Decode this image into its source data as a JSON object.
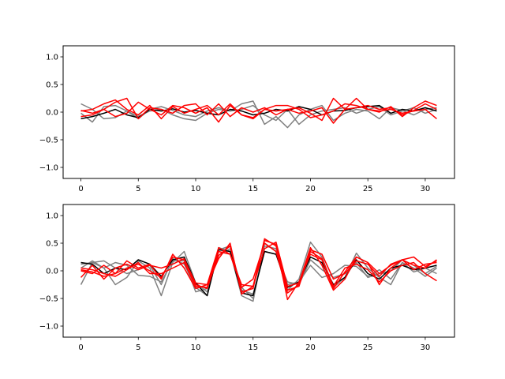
{
  "chart_data": [
    {
      "type": "line",
      "xlim": [
        -1.55,
        32.55
      ],
      "ylim": [
        -1.2,
        1.2
      ],
      "xticks": [
        0,
        5,
        10,
        15,
        20,
        25,
        30
      ],
      "yticks": [
        -1.0,
        -0.5,
        0.0,
        0.5,
        1.0
      ],
      "xtick_labels": [
        "0",
        "5",
        "10",
        "15",
        "20",
        "25",
        "30"
      ],
      "ytick_labels": [
        "−1.0",
        "−0.5",
        "0.0",
        "0.5",
        "1.0"
      ],
      "x": [
        0,
        1,
        2,
        3,
        4,
        5,
        6,
        7,
        8,
        9,
        10,
        11,
        12,
        13,
        14,
        15,
        16,
        17,
        18,
        19,
        20,
        21,
        22,
        23,
        24,
        25,
        26,
        27,
        28,
        29,
        30,
        31
      ],
      "series": [
        {
          "color": "#808080",
          "values": [
            0.15,
            0.05,
            -0.12,
            -0.1,
            0.02,
            -0.12,
            0.05,
            0.1,
            0.03,
            -0.05,
            -0.08,
            0.02,
            0.08,
            0.02,
            0.15,
            0.2,
            -0.22,
            -0.08,
            -0.28,
            -0.05,
            0.05,
            0.12,
            -0.15,
            -0.02,
            0.05,
            0.02,
            -0.12,
            0.08,
            0.03,
            -0.05,
            0.05,
            0.08
          ]
        },
        {
          "color": "#808080",
          "values": [
            -0.02,
            -0.18,
            0.1,
            0.12,
            0.02,
            -0.08,
            0.02,
            0.05,
            -0.05,
            -0.12,
            -0.15,
            -0.02,
            0.05,
            0.02,
            0.05,
            0.12,
            -0.05,
            -0.15,
            0.05,
            -0.22,
            -0.05,
            0.02,
            0.05,
            0.08,
            -0.02,
            0.05,
            0.1,
            -0.05,
            0.02,
            0.08,
            -0.02,
            0.05
          ]
        },
        {
          "color": "#000000",
          "values": [
            -0.12,
            -0.08,
            -0.02,
            0.05,
            -0.05,
            -0.1,
            0.05,
            0.02,
            0.06,
            0.0,
            0.03,
            -0.02,
            -0.05,
            0.05,
            0.02,
            -0.05,
            -0.02,
            0.05,
            0.02,
            0.1,
            0.05,
            -0.05,
            0.02,
            0.03,
            0.08,
            0.1,
            0.12,
            -0.02,
            0.05,
            0.02,
            0.08,
            0.02
          ]
        },
        {
          "color": "#ff0000",
          "values": [
            0.02,
            0.05,
            0.15,
            0.22,
            0.05,
            -0.05,
            0.12,
            -0.12,
            0.1,
            -0.02,
            0.05,
            0.12,
            -0.05,
            0.15,
            -0.05,
            -0.12,
            0.05,
            0.02,
            0.05,
            0.08,
            -0.02,
            -0.15,
            0.25,
            0.05,
            0.08,
            0.12,
            0.05,
            0.08,
            -0.05,
            0.03,
            0.15,
            0.05
          ]
        },
        {
          "color": "#ff0000",
          "values": [
            -0.08,
            -0.05,
            0.05,
            -0.08,
            -0.02,
            0.18,
            0.05,
            -0.05,
            0.12,
            0.08,
            -0.02,
            0.08,
            -0.18,
            0.12,
            -0.05,
            -0.1,
            0.05,
            0.12,
            0.12,
            0.05,
            -0.1,
            -0.05,
            0.02,
            0.15,
            0.12,
            0.05,
            0.02,
            0.05,
            -0.02,
            0.02,
            0.05,
            -0.12
          ]
        },
        {
          "color": "#ff0000",
          "values": [
            0.03,
            -0.02,
            0.05,
            0.18,
            0.25,
            -0.12,
            0.08,
            0.05,
            -0.02,
            0.12,
            0.15,
            -0.05,
            0.15,
            -0.08,
            0.08,
            0.0,
            0.08,
            -0.05,
            0.05,
            -0.02,
            0.02,
            0.08,
            -0.2,
            0.05,
            0.25,
            0.05,
            0.0,
            0.1,
            -0.08,
            0.08,
            0.2,
            0.12
          ]
        }
      ]
    },
    {
      "type": "line",
      "xlim": [
        -1.55,
        32.55
      ],
      "ylim": [
        -1.2,
        1.2
      ],
      "xticks": [
        0,
        5,
        10,
        15,
        20,
        25,
        30
      ],
      "yticks": [
        -1.0,
        -0.5,
        0.0,
        0.5,
        1.0
      ],
      "xtick_labels": [
        "0",
        "5",
        "10",
        "15",
        "20",
        "25",
        "30"
      ],
      "ytick_labels": [
        "−1.0",
        "−0.5",
        "0.0",
        "0.5",
        "1.0"
      ],
      "x": [
        0,
        1,
        2,
        3,
        4,
        5,
        6,
        7,
        8,
        9,
        10,
        11,
        12,
        13,
        14,
        15,
        16,
        17,
        18,
        19,
        20,
        21,
        22,
        23,
        24,
        25,
        26,
        27,
        28,
        29,
        30,
        31
      ],
      "series": [
        {
          "color": "#808080",
          "values": [
            0.12,
            0.15,
            0.05,
            -0.25,
            -0.12,
            0.18,
            0.05,
            -0.45,
            0.15,
            0.35,
            -0.22,
            -0.38,
            0.42,
            0.35,
            -0.45,
            -0.55,
            0.5,
            0.35,
            -0.35,
            -0.15,
            0.52,
            0.25,
            -0.3,
            -0.12,
            0.32,
            0.05,
            -0.12,
            -0.25,
            0.15,
            0.05,
            -0.1,
            0.05
          ]
        },
        {
          "color": "#808080",
          "values": [
            -0.25,
            0.15,
            0.18,
            0.05,
            -0.05,
            0.02,
            0.1,
            -0.25,
            0.22,
            0.12,
            -0.3,
            -0.45,
            0.38,
            0.45,
            -0.35,
            -0.42,
            0.35,
            0.3,
            -0.2,
            -0.25,
            0.2,
            0.02,
            -0.12,
            -0.05,
            0.15,
            -0.12,
            -0.05,
            0.0,
            0.2,
            0.1,
            -0.05,
            0.08
          ]
        },
        {
          "color": "#808080",
          "values": [
            0.05,
            0.18,
            0.05,
            0.15,
            0.1,
            -0.08,
            -0.1,
            -0.2,
            0.18,
            0.18,
            -0.38,
            -0.32,
            0.28,
            0.4,
            -0.3,
            -0.5,
            0.45,
            0.4,
            -0.25,
            -0.2,
            0.1,
            -0.12,
            -0.05,
            0.1,
            0.08,
            -0.1,
            0.02,
            -0.15,
            0.15,
            -0.02,
            0.05,
            -0.05
          ]
        },
        {
          "color": "#000000",
          "values": [
            0.15,
            0.12,
            -0.05,
            0.05,
            0.02,
            0.2,
            0.12,
            -0.1,
            0.2,
            0.25,
            -0.22,
            -0.45,
            0.38,
            0.35,
            -0.4,
            -0.45,
            0.35,
            0.3,
            -0.3,
            -0.2,
            0.25,
            0.15,
            -0.25,
            -0.12,
            0.2,
            -0.05,
            -0.15,
            0.05,
            0.1,
            0.02,
            0.05,
            0.1
          ]
        },
        {
          "color": "#ff0000",
          "values": [
            0.0,
            -0.05,
            0.1,
            -0.05,
            0.18,
            0.05,
            0.12,
            -0.15,
            0.3,
            0.05,
            -0.32,
            -0.25,
            0.42,
            0.3,
            -0.25,
            -0.28,
            0.55,
            0.48,
            -0.52,
            -0.2,
            0.3,
            0.2,
            -0.32,
            -0.02,
            0.25,
            0.15,
            -0.25,
            0.05,
            0.2,
            0.25,
            0.08,
            0.18
          ]
        },
        {
          "color": "#ff0000",
          "values": [
            -0.12,
            0.1,
            -0.15,
            0.05,
            0.12,
            0.02,
            0.1,
            0.05,
            0.12,
            0.22,
            -0.25,
            -0.32,
            0.28,
            0.45,
            -0.38,
            -0.32,
            0.58,
            0.45,
            -0.35,
            -0.28,
            0.38,
            0.3,
            -0.15,
            -0.05,
            0.18,
            0.12,
            -0.1,
            0.12,
            0.2,
            0.1,
            0.05,
            0.2
          ]
        },
        {
          "color": "#ff0000",
          "values": [
            0.02,
            -0.02,
            -0.1,
            -0.05,
            0.05,
            0.12,
            0.0,
            -0.12,
            0.25,
            0.2,
            -0.22,
            -0.25,
            0.22,
            0.5,
            -0.42,
            -0.28,
            0.4,
            0.52,
            -0.28,
            -0.22,
            0.42,
            0.1,
            -0.35,
            -0.15,
            0.25,
            0.15,
            -0.05,
            0.1,
            0.2,
            0.02,
            0.12,
            0.15
          ]
        },
        {
          "color": "#ff0000",
          "values": [
            0.05,
            0.02,
            -0.05,
            -0.1,
            0.02,
            0.15,
            -0.05,
            -0.05,
            0.05,
            0.15,
            -0.28,
            -0.3,
            0.35,
            0.3,
            -0.3,
            -0.15,
            0.5,
            0.35,
            -0.4,
            -0.25,
            0.35,
            0.22,
            -0.28,
            0.05,
            0.12,
            0.02,
            -0.2,
            0.0,
            0.1,
            0.15,
            -0.05,
            -0.18
          ]
        }
      ]
    }
  ]
}
